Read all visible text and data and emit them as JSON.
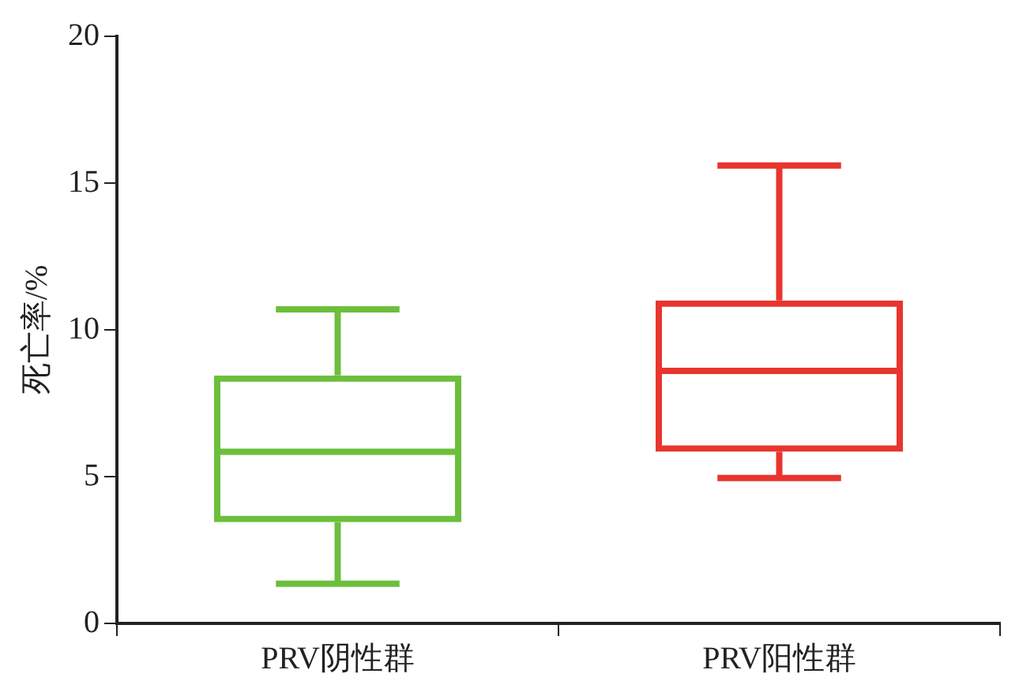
{
  "chart_data": {
    "type": "box",
    "categories": [
      "PRV阴性群",
      "PRV阳性群"
    ],
    "boxes": [
      {
        "low": 1.35,
        "q1": 3.45,
        "median": 5.85,
        "q3": 8.45,
        "high": 10.7
      },
      {
        "low": 4.95,
        "q1": 5.85,
        "median": 8.6,
        "q3": 11.0,
        "high": 15.6
      }
    ],
    "colors": [
      "#6cbf3c",
      "#e8352e"
    ],
    "ylabel": "死亡率/%",
    "ylim": [
      0,
      20
    ],
    "yticks": [
      0,
      5,
      10,
      15,
      20
    ],
    "grid": false,
    "legend": false
  }
}
